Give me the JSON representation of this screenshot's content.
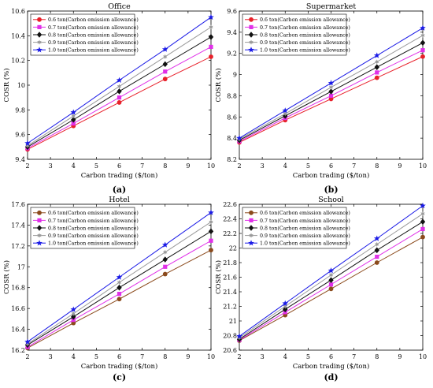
{
  "chart_data": [
    {
      "type": "line",
      "panel_label": "(a)",
      "title": "Office",
      "xlabel": "Carbon trading ($/ton)",
      "ylabel": "COSR (%)",
      "xlim": [
        2,
        10
      ],
      "ylim": [
        9.4,
        10.6
      ],
      "xticks": [
        2,
        3,
        4,
        5,
        6,
        7,
        8,
        9,
        10
      ],
      "yticks": [
        9.4,
        9.6,
        9.8,
        10,
        10.2,
        10.4,
        10.6
      ],
      "ytick_labels": [
        "9.4",
        "9.6",
        "9.8",
        "10",
        "10.2",
        "10.4",
        "10.6"
      ],
      "legend_position": "top-left",
      "x": [
        2,
        4,
        6,
        8,
        10
      ],
      "series": [
        {
          "name": "0.6 ton(Carbon emission allowance)",
          "values": [
            9.48,
            9.67,
            9.86,
            10.05,
            10.23
          ]
        },
        {
          "name": "0.7 ton(Carbon emission allowance)",
          "values": [
            9.49,
            9.69,
            9.9,
            10.11,
            10.31
          ]
        },
        {
          "name": "0.8 ton(Carbon emission allowance)",
          "values": [
            9.5,
            9.72,
            9.95,
            10.17,
            10.39
          ]
        },
        {
          "name": "0.9 ton(Carbon emission allowance)",
          "values": [
            9.51,
            9.75,
            9.99,
            10.23,
            10.47
          ]
        },
        {
          "name": "1.0 ton(Carbon emission allowance)",
          "values": [
            9.53,
            9.78,
            10.04,
            10.29,
            10.55
          ]
        }
      ]
    },
    {
      "type": "line",
      "panel_label": "(b)",
      "title": "Supermarket",
      "xlabel": "Carbon trading ($/ton)",
      "ylabel": "COSR (%)",
      "xlim": [
        2,
        10
      ],
      "ylim": [
        8.2,
        9.6
      ],
      "xticks": [
        2,
        3,
        4,
        5,
        6,
        7,
        8,
        9,
        10
      ],
      "yticks": [
        8.2,
        8.4,
        8.6,
        8.8,
        9,
        9.2,
        9.4,
        9.6
      ],
      "ytick_labels": [
        "8.2",
        "8.4",
        "8.6",
        "8.8",
        "9",
        "9.2",
        "9.4",
        "9.6"
      ],
      "legend_position": "top-left",
      "x": [
        2,
        4,
        6,
        8,
        10
      ],
      "series": [
        {
          "name": "0.6 ton(Carbon emission allowance)",
          "values": [
            8.36,
            8.57,
            8.77,
            8.97,
            9.17
          ]
        },
        {
          "name": "0.7 ton(Carbon emission allowance)",
          "values": [
            8.37,
            8.59,
            8.8,
            9.02,
            9.23
          ]
        },
        {
          "name": "0.8 ton(Carbon emission allowance)",
          "values": [
            8.38,
            8.61,
            8.84,
            9.07,
            9.3
          ]
        },
        {
          "name": "0.9 ton(Carbon emission allowance)",
          "values": [
            8.39,
            8.63,
            8.88,
            9.12,
            9.37
          ]
        },
        {
          "name": "1.0 ton(Carbon emission allowance)",
          "values": [
            8.4,
            8.66,
            8.92,
            9.18,
            9.44
          ]
        }
      ]
    },
    {
      "type": "line",
      "panel_label": "(c)",
      "title": "Hotel",
      "xlabel": "Carbon trading ($/ton)",
      "ylabel": "COSR (%)",
      "xlim": [
        2,
        10
      ],
      "ylim": [
        16.2,
        17.6
      ],
      "xticks": [
        2,
        3,
        4,
        5,
        6,
        7,
        8,
        9,
        10
      ],
      "yticks": [
        16.2,
        16.4,
        16.6,
        16.8,
        17,
        17.2,
        17.4,
        17.6
      ],
      "ytick_labels": [
        "16.2",
        "16.4",
        "16.6",
        "16.8",
        "17",
        "17.2",
        "17.4",
        "17.6"
      ],
      "legend_position": "top-left",
      "x": [
        2,
        4,
        6,
        8,
        10
      ],
      "series": [
        {
          "name": "0.6 ton(Carbon emission allowance)",
          "values": [
            16.22,
            16.46,
            16.69,
            16.93,
            17.16
          ]
        },
        {
          "name": "0.7 ton(Carbon emission allowance)",
          "values": [
            16.23,
            16.49,
            16.74,
            17.0,
            17.25
          ]
        },
        {
          "name": "0.8 ton(Carbon emission allowance)",
          "values": [
            16.25,
            16.52,
            16.8,
            17.07,
            17.34
          ]
        },
        {
          "name": "0.9 ton(Carbon emission allowance)",
          "values": [
            16.26,
            16.55,
            16.85,
            17.14,
            17.43
          ]
        },
        {
          "name": "1.0 ton(Carbon emission allowance)",
          "values": [
            16.28,
            16.59,
            16.9,
            17.21,
            17.52
          ]
        }
      ]
    },
    {
      "type": "line",
      "panel_label": "(d)",
      "title": "School",
      "xlabel": "Carbon trading ($/ton)",
      "ylabel": "COSR (%)",
      "xlim": [
        2,
        10
      ],
      "ylim": [
        20.6,
        22.6
      ],
      "xticks": [
        2,
        3,
        4,
        5,
        6,
        7,
        8,
        9,
        10
      ],
      "yticks": [
        20.6,
        20.8,
        21,
        21.2,
        21.4,
        21.6,
        21.8,
        22,
        22.2,
        22.4,
        22.6
      ],
      "ytick_labels": [
        "20.6",
        "20.8",
        "21",
        "21.2",
        "21.4",
        "21.6",
        "21.8",
        "22",
        "22.2",
        "22.4",
        "22.6"
      ],
      "legend_position": "top-left",
      "x": [
        2,
        4,
        6,
        8,
        10
      ],
      "series": [
        {
          "name": "0.6 ton(Carbon emission allowance)",
          "values": [
            20.73,
            21.08,
            21.44,
            21.8,
            22.15
          ]
        },
        {
          "name": "0.7 ton(Carbon emission allowance)",
          "values": [
            20.74,
            21.12,
            21.5,
            21.88,
            22.26
          ]
        },
        {
          "name": "0.8 ton(Carbon emission allowance)",
          "values": [
            20.75,
            21.16,
            21.56,
            21.97,
            22.36
          ]
        },
        {
          "name": "0.9 ton(Carbon emission allowance)",
          "values": [
            20.77,
            21.2,
            21.63,
            22.05,
            22.47
          ]
        },
        {
          "name": "1.0 ton(Carbon emission allowance)",
          "values": [
            20.79,
            21.24,
            21.69,
            22.13,
            22.58
          ]
        }
      ]
    }
  ],
  "series_style": [
    {
      "color": "#e8202a",
      "marker": "circle"
    },
    {
      "color": "#e030e8",
      "marker": "square"
    },
    {
      "color": "#111111",
      "marker": "diamond"
    },
    {
      "color": "#9a9a9a",
      "marker": "star6"
    },
    {
      "color": "#1a1ae6",
      "marker": "star5"
    }
  ],
  "series_style_panels_cd": [
    {
      "color": "#8b4a1c",
      "marker": "circle"
    },
    {
      "color": "#e030e8",
      "marker": "square"
    },
    {
      "color": "#111111",
      "marker": "diamond"
    },
    {
      "color": "#9a9a9a",
      "marker": "star6"
    },
    {
      "color": "#1a1ae6",
      "marker": "star5"
    }
  ]
}
